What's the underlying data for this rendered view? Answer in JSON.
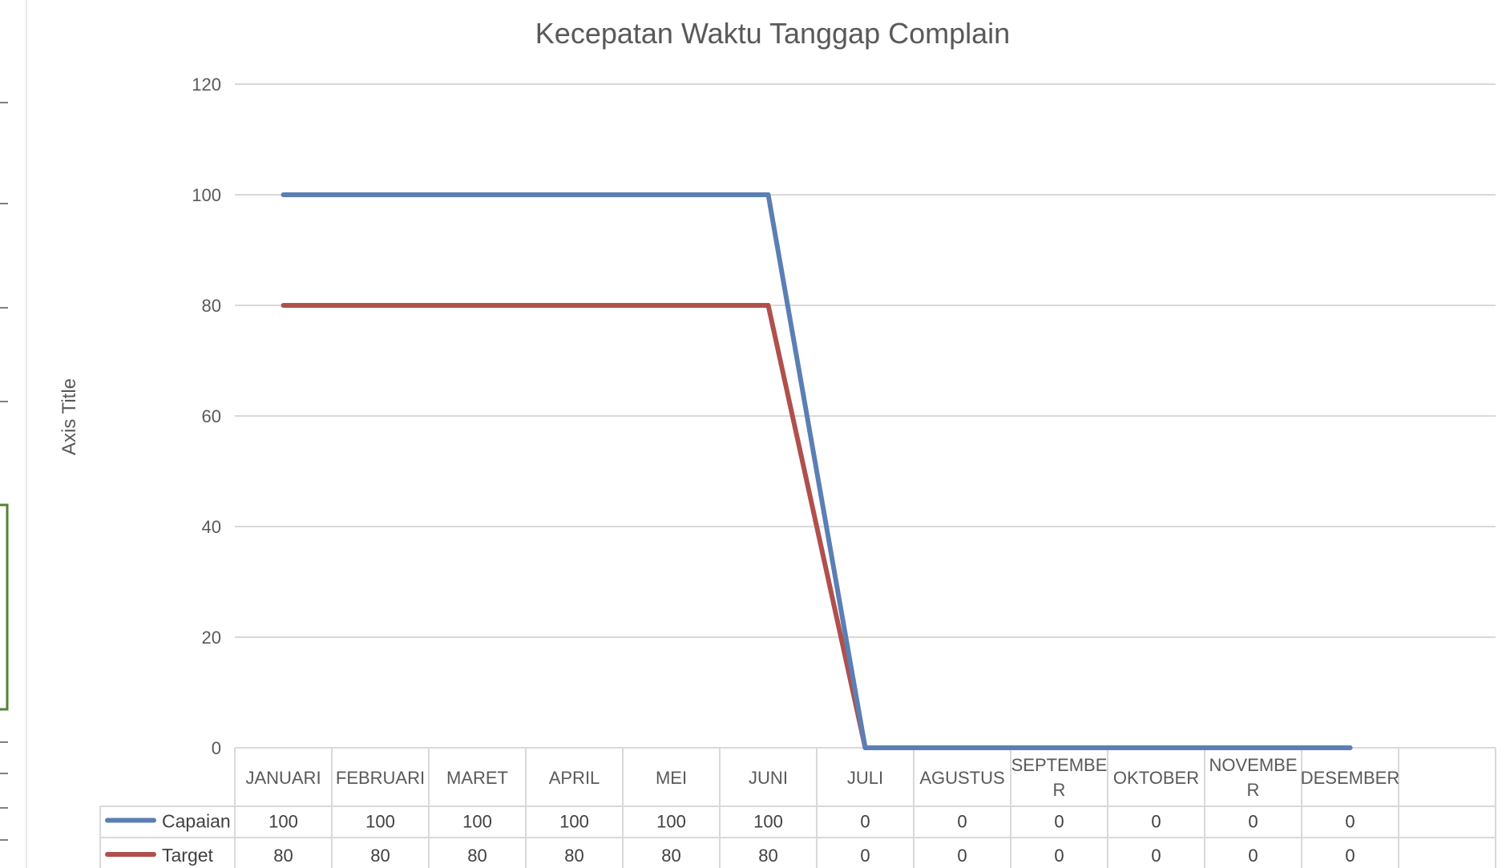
{
  "chart_data": {
    "type": "line",
    "title": "Kecepatan Waktu Tanggap Complain",
    "ylabel": "Axis Title",
    "xlabel": "",
    "ylim": [
      0,
      120
    ],
    "yticks": [
      0,
      20,
      40,
      60,
      80,
      100,
      120
    ],
    "grid": true,
    "legend": "data-table",
    "categories": [
      [
        "JANUARI"
      ],
      [
        "FEBRUARI"
      ],
      [
        "MARET"
      ],
      [
        "APRIL"
      ],
      [
        "MEI"
      ],
      [
        "JUNI"
      ],
      [
        "JULI"
      ],
      [
        "AGUSTUS"
      ],
      [
        "SEPTEMBE",
        "R"
      ],
      [
        "OKTOBER"
      ],
      [
        "NOVEMBE",
        "R"
      ],
      [
        "DESEMBER"
      ]
    ],
    "series": [
      {
        "name": "Capaian",
        "color": "#5b7fb4",
        "values": [
          100,
          100,
          100,
          100,
          100,
          100,
          0,
          0,
          0,
          0,
          0,
          0
        ]
      },
      {
        "name": "Target",
        "color": "#b0504d",
        "values": [
          80,
          80,
          80,
          80,
          80,
          80,
          0,
          0,
          0,
          0,
          0,
          0
        ]
      }
    ]
  }
}
